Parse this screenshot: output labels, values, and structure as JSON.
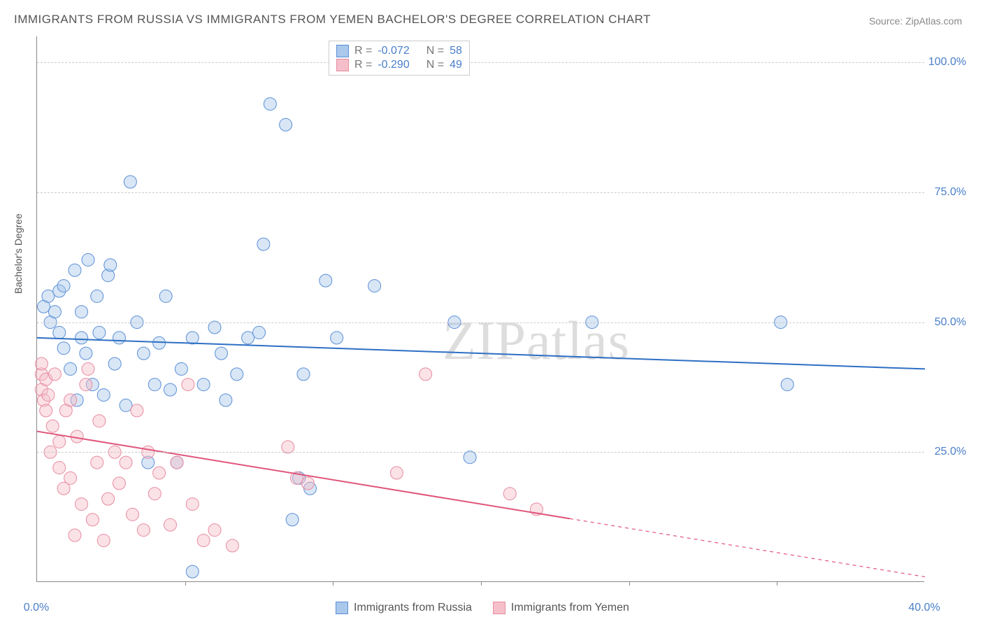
{
  "title": "IMMIGRANTS FROM RUSSIA VS IMMIGRANTS FROM YEMEN BACHELOR'S DEGREE CORRELATION CHART",
  "source": "Source: ZipAtlas.com",
  "watermark": "ZIPatlas",
  "ylabel": "Bachelor's Degree",
  "chart": {
    "type": "scatter-with-regression",
    "background_color": "#ffffff",
    "grid_color": "#cccccc",
    "axis_color": "#888888",
    "xlim": [
      0,
      40
    ],
    "ylim": [
      0,
      105
    ],
    "x_ticks": [
      0,
      40
    ],
    "x_tick_labels": [
      "0.0%",
      "40.0%"
    ],
    "x_minor_ticks": [
      6.67,
      13.33,
      20,
      26.67,
      33.33
    ],
    "y_ticks": [
      25,
      50,
      75,
      100
    ],
    "y_tick_labels": [
      "25.0%",
      "50.0%",
      "75.0%",
      "100.0%"
    ],
    "marker_radius": 9,
    "marker_opacity": 0.45,
    "line_width": 2,
    "series": [
      {
        "name": "Immigrants from Russia",
        "color_fill": "#a9c8ec",
        "color_stroke": "#5b8fd6",
        "line_color": "#2e6fc4",
        "R": "-0.072",
        "N": "58",
        "trend": {
          "x0": 0,
          "y0": 47,
          "x1": 40,
          "y1": 41,
          "solid_until_x": 40
        },
        "points": [
          [
            0.3,
            53
          ],
          [
            0.5,
            55
          ],
          [
            0.6,
            50
          ],
          [
            0.8,
            52
          ],
          [
            1.0,
            48
          ],
          [
            1.0,
            56
          ],
          [
            1.2,
            45
          ],
          [
            1.2,
            57
          ],
          [
            1.5,
            41
          ],
          [
            1.7,
            60
          ],
          [
            1.8,
            35
          ],
          [
            2.0,
            47
          ],
          [
            2.0,
            52
          ],
          [
            2.2,
            44
          ],
          [
            2.3,
            62
          ],
          [
            2.5,
            38
          ],
          [
            2.7,
            55
          ],
          [
            2.8,
            48
          ],
          [
            3.0,
            36
          ],
          [
            3.2,
            59
          ],
          [
            3.3,
            61
          ],
          [
            3.5,
            42
          ],
          [
            3.7,
            47
          ],
          [
            4.0,
            34
          ],
          [
            4.2,
            77
          ],
          [
            4.5,
            50
          ],
          [
            4.8,
            44
          ],
          [
            5.0,
            23
          ],
          [
            5.3,
            38
          ],
          [
            5.5,
            46
          ],
          [
            5.8,
            55
          ],
          [
            6.0,
            37
          ],
          [
            6.3,
            23
          ],
          [
            6.5,
            41
          ],
          [
            7.0,
            47
          ],
          [
            7.0,
            2
          ],
          [
            7.5,
            38
          ],
          [
            8.0,
            49
          ],
          [
            8.3,
            44
          ],
          [
            8.5,
            35
          ],
          [
            9.0,
            40
          ],
          [
            9.5,
            47
          ],
          [
            10.0,
            48
          ],
          [
            10.2,
            65
          ],
          [
            10.5,
            92
          ],
          [
            11.2,
            88
          ],
          [
            11.5,
            12
          ],
          [
            11.8,
            20
          ],
          [
            12.0,
            40
          ],
          [
            12.3,
            18
          ],
          [
            13.0,
            58
          ],
          [
            13.5,
            47
          ],
          [
            15.2,
            57
          ],
          [
            18.8,
            50
          ],
          [
            19.5,
            24
          ],
          [
            25.0,
            50
          ],
          [
            33.5,
            50
          ],
          [
            33.8,
            38
          ]
        ]
      },
      {
        "name": "Immigrants from Yemen",
        "color_fill": "#f5bfca",
        "color_stroke": "#e88ba0",
        "line_color": "#e0557b",
        "R": "-0.290",
        "N": "49",
        "trend": {
          "x0": 0,
          "y0": 29,
          "x1": 40,
          "y1": 1,
          "solid_until_x": 24
        },
        "points": [
          [
            0.2,
            37
          ],
          [
            0.2,
            40
          ],
          [
            0.2,
            42
          ],
          [
            0.3,
            35
          ],
          [
            0.4,
            39
          ],
          [
            0.4,
            33
          ],
          [
            0.5,
            36
          ],
          [
            0.6,
            25
          ],
          [
            0.7,
            30
          ],
          [
            0.8,
            40
          ],
          [
            1.0,
            27
          ],
          [
            1.0,
            22
          ],
          [
            1.2,
            18
          ],
          [
            1.3,
            33
          ],
          [
            1.5,
            35
          ],
          [
            1.5,
            20
          ],
          [
            1.7,
            9
          ],
          [
            1.8,
            28
          ],
          [
            2.0,
            15
          ],
          [
            2.2,
            38
          ],
          [
            2.3,
            41
          ],
          [
            2.5,
            12
          ],
          [
            2.7,
            23
          ],
          [
            2.8,
            31
          ],
          [
            3.0,
            8
          ],
          [
            3.2,
            16
          ],
          [
            3.5,
            25
          ],
          [
            3.7,
            19
          ],
          [
            4.0,
            23
          ],
          [
            4.3,
            13
          ],
          [
            4.5,
            33
          ],
          [
            4.8,
            10
          ],
          [
            5.0,
            25
          ],
          [
            5.3,
            17
          ],
          [
            5.5,
            21
          ],
          [
            6.0,
            11
          ],
          [
            6.3,
            23
          ],
          [
            6.8,
            38
          ],
          [
            7.0,
            15
          ],
          [
            7.5,
            8
          ],
          [
            8.0,
            10
          ],
          [
            8.8,
            7
          ],
          [
            11.3,
            26
          ],
          [
            11.7,
            20
          ],
          [
            12.2,
            19
          ],
          [
            16.2,
            21
          ],
          [
            17.5,
            40
          ],
          [
            21.3,
            17
          ],
          [
            22.5,
            14
          ]
        ]
      }
    ]
  },
  "legend_top": [
    {
      "swatch_fill": "#a9c8ec",
      "swatch_stroke": "#5b8fd6",
      "r_label": "R =",
      "r_val": "-0.072",
      "n_label": "N =",
      "n_val": "58"
    },
    {
      "swatch_fill": "#f5bfca",
      "swatch_stroke": "#e88ba0",
      "r_label": "R =",
      "r_val": "-0.290",
      "n_label": "N =",
      "n_val": "49"
    }
  ],
  "legend_bottom": [
    {
      "swatch_fill": "#a9c8ec",
      "swatch_stroke": "#5b8fd6",
      "label": "Immigrants from Russia"
    },
    {
      "swatch_fill": "#f5bfca",
      "swatch_stroke": "#e88ba0",
      "label": "Immigrants from Yemen"
    }
  ]
}
